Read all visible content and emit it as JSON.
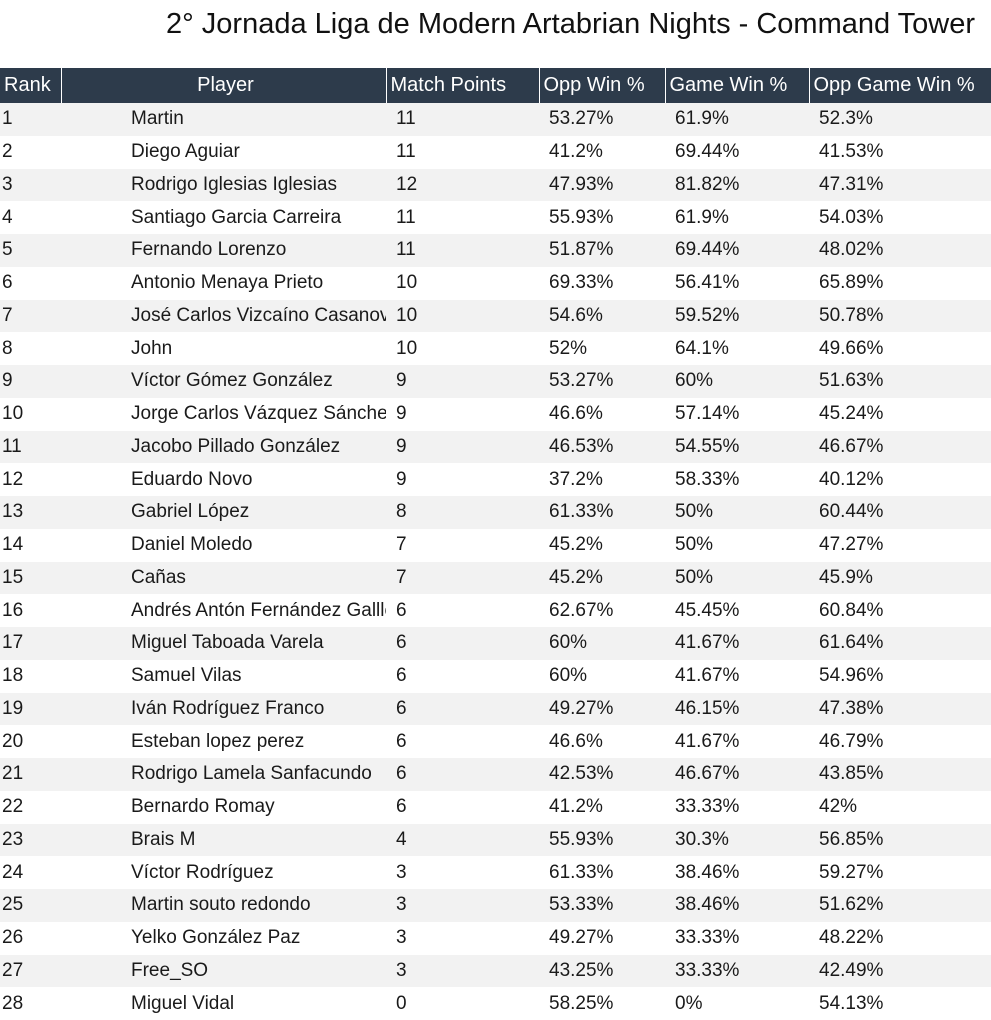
{
  "title": "2° Jornada Liga de Modern Artabrian Nights - Command Tower",
  "columns": {
    "rank": "Rank",
    "player": "Player",
    "match_points": "Match Points",
    "opp_win": "Opp Win %",
    "game_win": "Game Win %",
    "opp_game_win": "Opp Game Win %"
  },
  "colors": {
    "header_bg": "#2d3b4b",
    "header_text": "#ffffff",
    "stripe": "#f2f2f2"
  },
  "rows": [
    {
      "rank": "1",
      "player": "Martin",
      "mp": "11",
      "ow": "53.27%",
      "gw": "61.9%",
      "ogw": "52.3%"
    },
    {
      "rank": "2",
      "player": "Diego Aguiar",
      "mp": "11",
      "ow": "41.2%",
      "gw": "69.44%",
      "ogw": "41.53%"
    },
    {
      "rank": "3",
      "player": "Rodrigo Iglesias Iglesias",
      "mp": "12",
      "ow": "47.93%",
      "gw": "81.82%",
      "ogw": "47.31%"
    },
    {
      "rank": "4",
      "player": "Santiago Garcia Carreira",
      "mp": "11",
      "ow": "55.93%",
      "gw": "61.9%",
      "ogw": "54.03%"
    },
    {
      "rank": "5",
      "player": "Fernando Lorenzo",
      "mp": "11",
      "ow": "51.87%",
      "gw": "69.44%",
      "ogw": "48.02%"
    },
    {
      "rank": "6",
      "player": "Antonio Menaya Prieto",
      "mp": "10",
      "ow": "69.33%",
      "gw": "56.41%",
      "ogw": "65.89%"
    },
    {
      "rank": "7",
      "player": "José Carlos Vizcaíno Casanova",
      "mp": "10",
      "ow": "54.6%",
      "gw": "59.52%",
      "ogw": "50.78%"
    },
    {
      "rank": "8",
      "player": "John",
      "mp": "10",
      "ow": "52%",
      "gw": "64.1%",
      "ogw": "49.66%"
    },
    {
      "rank": "9",
      "player": "Víctor Gómez González",
      "mp": "9",
      "ow": "53.27%",
      "gw": "60%",
      "ogw": "51.63%"
    },
    {
      "rank": "10",
      "player": "Jorge Carlos Vázquez Sánchez",
      "mp": "9",
      "ow": "46.6%",
      "gw": "57.14%",
      "ogw": "45.24%"
    },
    {
      "rank": "11",
      "player": "Jacobo Pillado González",
      "mp": "9",
      "ow": "46.53%",
      "gw": "54.55%",
      "ogw": "46.67%"
    },
    {
      "rank": "12",
      "player": "Eduardo Novo",
      "mp": "9",
      "ow": "37.2%",
      "gw": "58.33%",
      "ogw": "40.12%"
    },
    {
      "rank": "13",
      "player": "Gabriel López",
      "mp": "8",
      "ow": "61.33%",
      "gw": "50%",
      "ogw": "60.44%"
    },
    {
      "rank": "14",
      "player": "Daniel Moledo",
      "mp": "7",
      "ow": "45.2%",
      "gw": "50%",
      "ogw": "47.27%"
    },
    {
      "rank": "15",
      "player": "Cañas",
      "mp": "7",
      "ow": "45.2%",
      "gw": "50%",
      "ogw": "45.9%"
    },
    {
      "rank": "16",
      "player": "Andrés Antón Fernández Galllego",
      "mp": "6",
      "ow": "62.67%",
      "gw": "45.45%",
      "ogw": "60.84%"
    },
    {
      "rank": "17",
      "player": "Miguel Taboada Varela",
      "mp": "6",
      "ow": "60%",
      "gw": "41.67%",
      "ogw": "61.64%"
    },
    {
      "rank": "18",
      "player": "Samuel Vilas",
      "mp": "6",
      "ow": "60%",
      "gw": "41.67%",
      "ogw": "54.96%"
    },
    {
      "rank": "19",
      "player": "Iván Rodríguez Franco",
      "mp": "6",
      "ow": "49.27%",
      "gw": "46.15%",
      "ogw": "47.38%"
    },
    {
      "rank": "20",
      "player": "Esteban lopez perez",
      "mp": "6",
      "ow": "46.6%",
      "gw": "41.67%",
      "ogw": "46.79%"
    },
    {
      "rank": "21",
      "player": "Rodrigo Lamela Sanfacundo",
      "mp": "6",
      "ow": "42.53%",
      "gw": "46.67%",
      "ogw": "43.85%"
    },
    {
      "rank": "22",
      "player": "Bernardo Romay",
      "mp": "6",
      "ow": "41.2%",
      "gw": "33.33%",
      "ogw": "42%"
    },
    {
      "rank": "23",
      "player": "Brais M",
      "mp": "4",
      "ow": "55.93%",
      "gw": "30.3%",
      "ogw": "56.85%"
    },
    {
      "rank": "24",
      "player": "Víctor Rodríguez",
      "mp": "3",
      "ow": "61.33%",
      "gw": "38.46%",
      "ogw": "59.27%"
    },
    {
      "rank": "25",
      "player": "Martin souto redondo",
      "mp": "3",
      "ow": "53.33%",
      "gw": "38.46%",
      "ogw": "51.62%"
    },
    {
      "rank": "26",
      "player": "Yelko González Paz",
      "mp": "3",
      "ow": "49.27%",
      "gw": "33.33%",
      "ogw": "48.22%"
    },
    {
      "rank": "27",
      "player": "Free_SO",
      "mp": "3",
      "ow": "43.25%",
      "gw": "33.33%",
      "ogw": "42.49%"
    },
    {
      "rank": "28",
      "player": "Miguel Vidal",
      "mp": "0",
      "ow": "58.25%",
      "gw": "0%",
      "ogw": "54.13%"
    }
  ]
}
